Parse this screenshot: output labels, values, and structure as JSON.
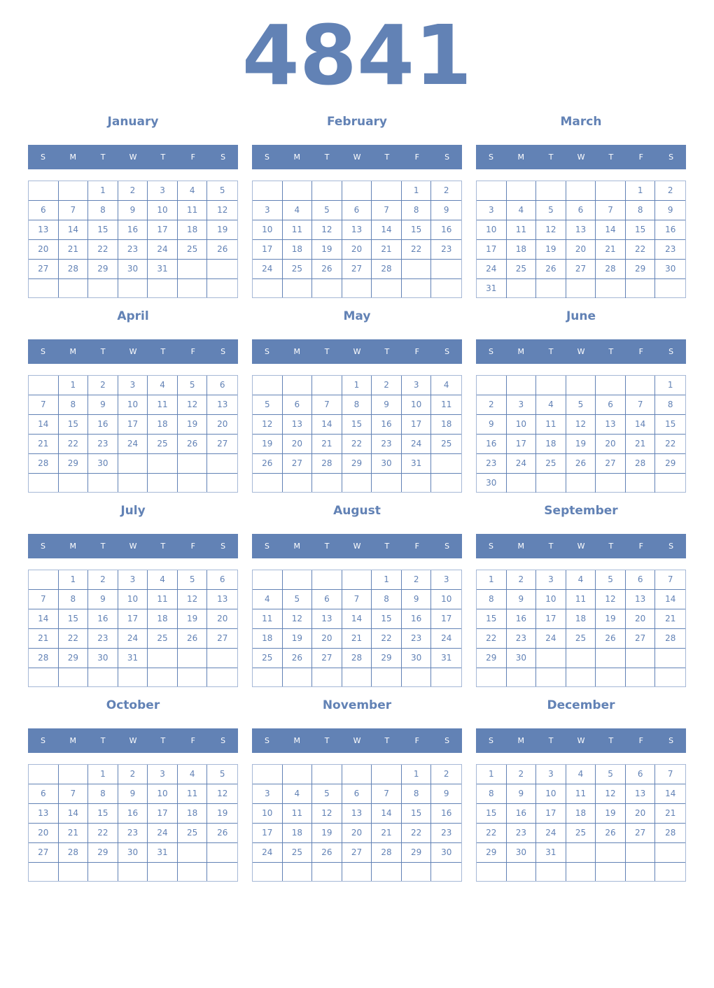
{
  "year": "4841",
  "weekdays": [
    "S",
    "M",
    "T",
    "W",
    "T",
    "F",
    "S"
  ],
  "colors": {
    "accent": "#6282b5",
    "outer_border": "#a6b8d6"
  },
  "months": [
    {
      "name": "January",
      "start_weekday": 2,
      "days": 31
    },
    {
      "name": "February",
      "start_weekday": 5,
      "days": 28
    },
    {
      "name": "March",
      "start_weekday": 5,
      "days": 31
    },
    {
      "name": "April",
      "start_weekday": 1,
      "days": 30
    },
    {
      "name": "May",
      "start_weekday": 3,
      "days": 31
    },
    {
      "name": "June",
      "start_weekday": 6,
      "days": 30
    },
    {
      "name": "July",
      "start_weekday": 1,
      "days": 31
    },
    {
      "name": "August",
      "start_weekday": 4,
      "days": 31
    },
    {
      "name": "September",
      "start_weekday": 0,
      "days": 30
    },
    {
      "name": "October",
      "start_weekday": 2,
      "days": 31
    },
    {
      "name": "November",
      "start_weekday": 5,
      "days": 30
    },
    {
      "name": "December",
      "start_weekday": 0,
      "days": 31
    }
  ]
}
